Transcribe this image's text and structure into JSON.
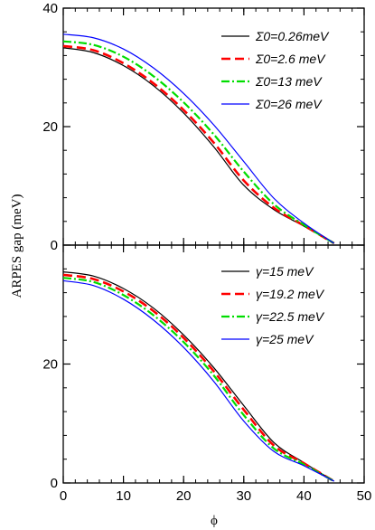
{
  "chart_data": [
    {
      "type": "line",
      "panel": "top",
      "xlim": [
        0,
        50
      ],
      "ylim": [
        0,
        40
      ],
      "xticks": [
        "0",
        "10",
        "20",
        "30",
        "40",
        "50"
      ],
      "xticks_shown": false,
      "yticks": [
        "0",
        "20",
        "40"
      ],
      "ylabel": "ARPES gap (meV)",
      "legend_position": "top-right",
      "series": [
        {
          "name": "Σ0=0.26meV",
          "color": "#000000",
          "dash": "solid",
          "x": [
            0,
            5,
            10,
            15,
            20,
            25,
            30,
            35,
            40,
            45
          ],
          "y": [
            33.3,
            32.5,
            30.3,
            26.9,
            22.3,
            16.6,
            10.1,
            6.0,
            3.2,
            0.3
          ]
        },
        {
          "name": "Σ0=2.6 meV",
          "color": "#ff0000",
          "dash": "dashed",
          "x": [
            0,
            5,
            10,
            15,
            20,
            25,
            30,
            35,
            40,
            45
          ],
          "y": [
            33.6,
            32.9,
            30.7,
            27.3,
            22.8,
            17.3,
            10.9,
            6.3,
            3.3,
            0.3
          ]
        },
        {
          "name": "Σ0=13 meV",
          "color": "#00dd00",
          "dash": "dashdot",
          "x": [
            0,
            5,
            10,
            15,
            20,
            25,
            30,
            35,
            40,
            45
          ],
          "y": [
            34.4,
            33.8,
            31.8,
            28.5,
            24.1,
            18.7,
            12.4,
            6.9,
            3.4,
            0.3
          ]
        },
        {
          "name": "Σ0=26 meV",
          "color": "#0000ff",
          "dash": "solid",
          "x": [
            0,
            5,
            10,
            15,
            20,
            25,
            30,
            35,
            40,
            45
          ],
          "y": [
            35.6,
            35.0,
            33.1,
            29.9,
            25.6,
            20.3,
            14.1,
            7.9,
            3.7,
            0.3
          ]
        }
      ]
    },
    {
      "type": "line",
      "panel": "bottom",
      "xlim": [
        0,
        50
      ],
      "ylim": [
        0,
        40
      ],
      "xticks": [
        "0",
        "10",
        "20",
        "30",
        "40",
        "50"
      ],
      "yticks": [
        "0",
        "20"
      ],
      "xlabel": "ϕ",
      "legend_position": "top-right",
      "series": [
        {
          "name": "γ=15 meV",
          "color": "#000000",
          "dash": "solid",
          "x": [
            0,
            5,
            10,
            15,
            20,
            25,
            30,
            35,
            40,
            45
          ],
          "y": [
            35.5,
            34.8,
            32.7,
            29.4,
            24.9,
            19.4,
            13.0,
            6.8,
            3.4,
            0.3
          ]
        },
        {
          "name": "γ=19.2 meV",
          "color": "#ff0000",
          "dash": "dashed",
          "x": [
            0,
            5,
            10,
            15,
            20,
            25,
            30,
            35,
            40,
            45
          ],
          "y": [
            35.0,
            34.3,
            32.2,
            28.9,
            24.4,
            18.8,
            12.3,
            6.3,
            3.3,
            0.3
          ]
        },
        {
          "name": "γ=22.5 meV",
          "color": "#00dd00",
          "dash": "dashdot",
          "x": [
            0,
            5,
            10,
            15,
            20,
            25,
            30,
            35,
            40,
            45
          ],
          "y": [
            34.5,
            33.8,
            31.6,
            28.2,
            23.7,
            18.1,
            11.4,
            5.8,
            3.1,
            0.3
          ]
        },
        {
          "name": "γ=25 meV",
          "color": "#0000ff",
          "dash": "solid",
          "x": [
            0,
            5,
            10,
            15,
            20,
            25,
            30,
            35,
            40,
            45
          ],
          "y": [
            34.0,
            33.2,
            30.9,
            27.4,
            22.8,
            17.1,
            10.4,
            5.3,
            2.9,
            0.3
          ]
        }
      ]
    }
  ]
}
